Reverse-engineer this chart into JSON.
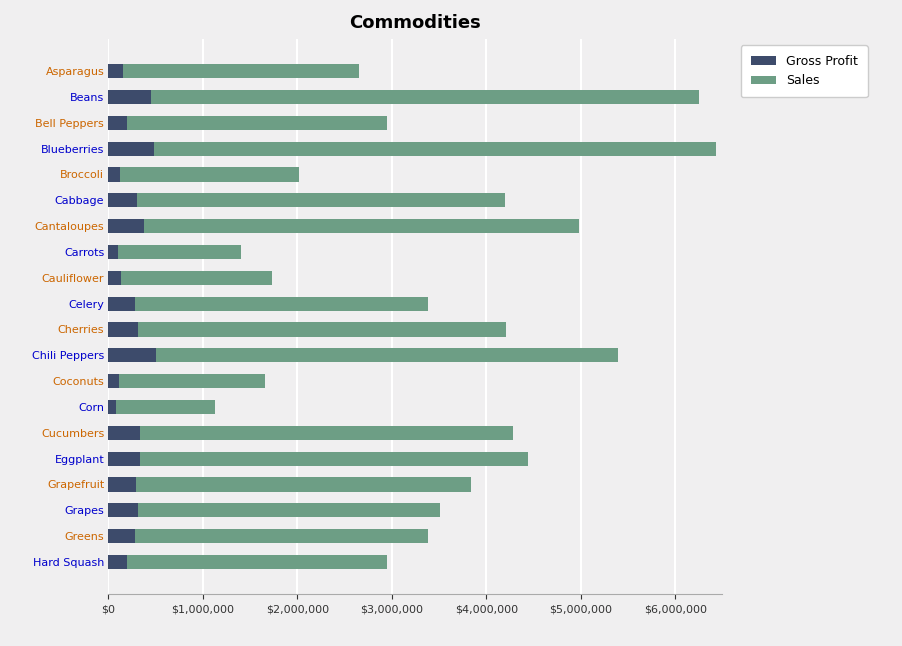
{
  "title": "Commodities",
  "categories": [
    "Asparagus",
    "Beans",
    "Bell Peppers",
    "Blueberries",
    "Broccoli",
    "Cabbage",
    "Cantaloupes",
    "Carrots",
    "Cauliflower",
    "Celery",
    "Cherries",
    "Chili Peppers",
    "Coconuts",
    "Corn",
    "Cucumbers",
    "Eggplant",
    "Grapefruit",
    "Grapes",
    "Greens",
    "Hard Squash"
  ],
  "gross_profit": [
    150000,
    450000,
    200000,
    480000,
    120000,
    300000,
    380000,
    100000,
    130000,
    280000,
    310000,
    500000,
    110000,
    80000,
    330000,
    340000,
    290000,
    310000,
    280000,
    200000
  ],
  "sales": [
    2500000,
    5800000,
    2750000,
    5950000,
    1900000,
    3900000,
    4600000,
    1300000,
    1600000,
    3100000,
    3900000,
    4900000,
    1550000,
    1050000,
    3950000,
    4100000,
    3550000,
    3200000,
    3100000,
    2750000
  ],
  "gross_profit_color": "#3d4b6b",
  "sales_color": "#6d9e85",
  "background_color": "#f0eff0",
  "plot_background_color": "#f0eff0",
  "title_fontsize": 13,
  "label_fontsize": 8,
  "legend_labels": [
    "Gross Profit",
    "Sales"
  ],
  "xlim": [
    0,
    6500000
  ],
  "grid_color": "#ffffff",
  "label_color_asparagus": "#cc6600",
  "label_color_beans": "#0000cc",
  "label_color_bellpeppers": "#cc6600",
  "label_color_blueberries": "#0000cc",
  "label_color_broccoli": "#cc6600",
  "label_color_cabbage": "#0000cc",
  "label_color_cantaloupes": "#cc6600",
  "label_color_carrots": "#0000cc",
  "label_color_cauliflower": "#cc6600",
  "label_color_celery": "#0000cc",
  "label_color_cherries": "#cc6600",
  "label_color_chilipeppers": "#0000cc",
  "label_color_coconuts": "#cc6600",
  "label_color_corn": "#0000cc",
  "label_color_cucumbers": "#cc6600",
  "label_color_eggplant": "#0000cc",
  "label_color_grapefruit": "#cc6600",
  "label_color_grapes": "#0000cc",
  "label_color_greens": "#cc6600",
  "label_color_hardsquash": "#0000cc",
  "label_colors": [
    "#cc6600",
    "#0000cc",
    "#cc6600",
    "#0000cc",
    "#cc6600",
    "#0000cc",
    "#cc6600",
    "#0000cc",
    "#cc6600",
    "#0000cc",
    "#cc6600",
    "#0000cc",
    "#cc6600",
    "#0000cc",
    "#cc6600",
    "#0000cc",
    "#cc6600",
    "#0000cc",
    "#cc6600",
    "#0000cc"
  ]
}
